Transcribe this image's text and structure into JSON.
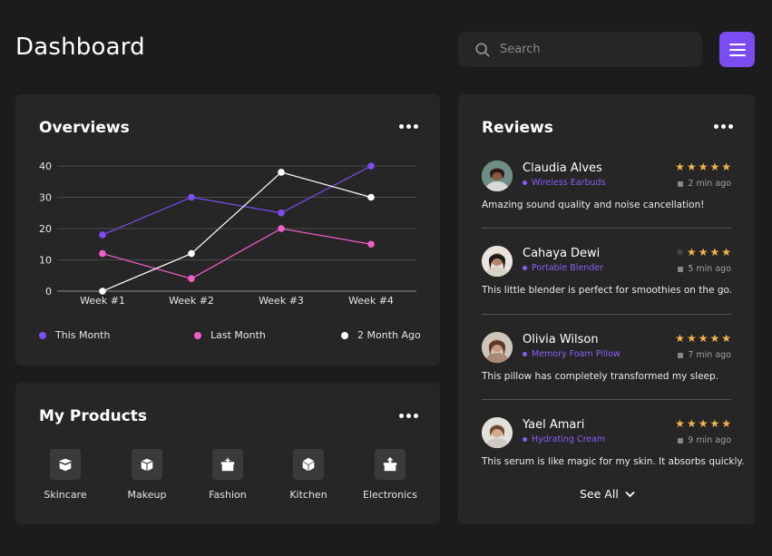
{
  "header": {
    "title": "Dashboard",
    "search_placeholder": "Search",
    "menu_icon": "hamburger-menu-icon",
    "accent_color": "#7b4cf0"
  },
  "overviews": {
    "title": "Overviews",
    "more_icon": "more-dots-icon",
    "chart_data": {
      "type": "line",
      "categories": [
        "Week #1",
        "Week #2",
        "Week #3",
        "Week #4"
      ],
      "y_ticks": [
        "0",
        "10",
        "20",
        "30",
        "40"
      ],
      "ylim": [
        0,
        40
      ],
      "grid": true,
      "legend_position": "bottom",
      "series": [
        {
          "name": "This Month",
          "color": "#7c4df2",
          "values": [
            18,
            30,
            25,
            40
          ]
        },
        {
          "name": "Last Month",
          "color": "#f05fc8",
          "values": [
            12,
            4,
            20,
            15
          ]
        },
        {
          "name": "2 Month Ago",
          "color": "#ffffff",
          "values": [
            0,
            12,
            38,
            30
          ]
        }
      ]
    }
  },
  "products": {
    "title": "My Products",
    "more_icon": "more-dots-icon",
    "items": [
      {
        "label": "Skincare",
        "icon": "box-open-icon"
      },
      {
        "label": "Makeup",
        "icon": "box-icon"
      },
      {
        "label": "Fashion",
        "icon": "box-sparkle-icon"
      },
      {
        "label": "Kitchen",
        "icon": "cube-icon"
      },
      {
        "label": "Electronics",
        "icon": "box-arrow-icon"
      }
    ]
  },
  "reviews": {
    "title": "Reviews",
    "more_icon": "more-dots-icon",
    "items": [
      {
        "name": "Claudia Alves",
        "product": "Wireless Earbuds",
        "rating": 5,
        "time": "2 min ago",
        "text": "Amazing sound quality and noise cancellation!"
      },
      {
        "name": "Cahaya Dewi",
        "product": "Portable Blender",
        "rating": 4,
        "time": "5 min ago",
        "text": "This little blender is perfect for smoothies on the go."
      },
      {
        "name": "Olivia Wilson",
        "product": "Memory Foam Pillow",
        "rating": 5,
        "time": "7 min ago",
        "text": "This pillow has completely transformed my sleep."
      },
      {
        "name": "Yael Amari",
        "product": "Hydrating Cream",
        "rating": 5,
        "time": "9 min ago",
        "text": "This serum is like magic for my skin. It absorbs quickly."
      }
    ],
    "see_all_label": "See All"
  }
}
